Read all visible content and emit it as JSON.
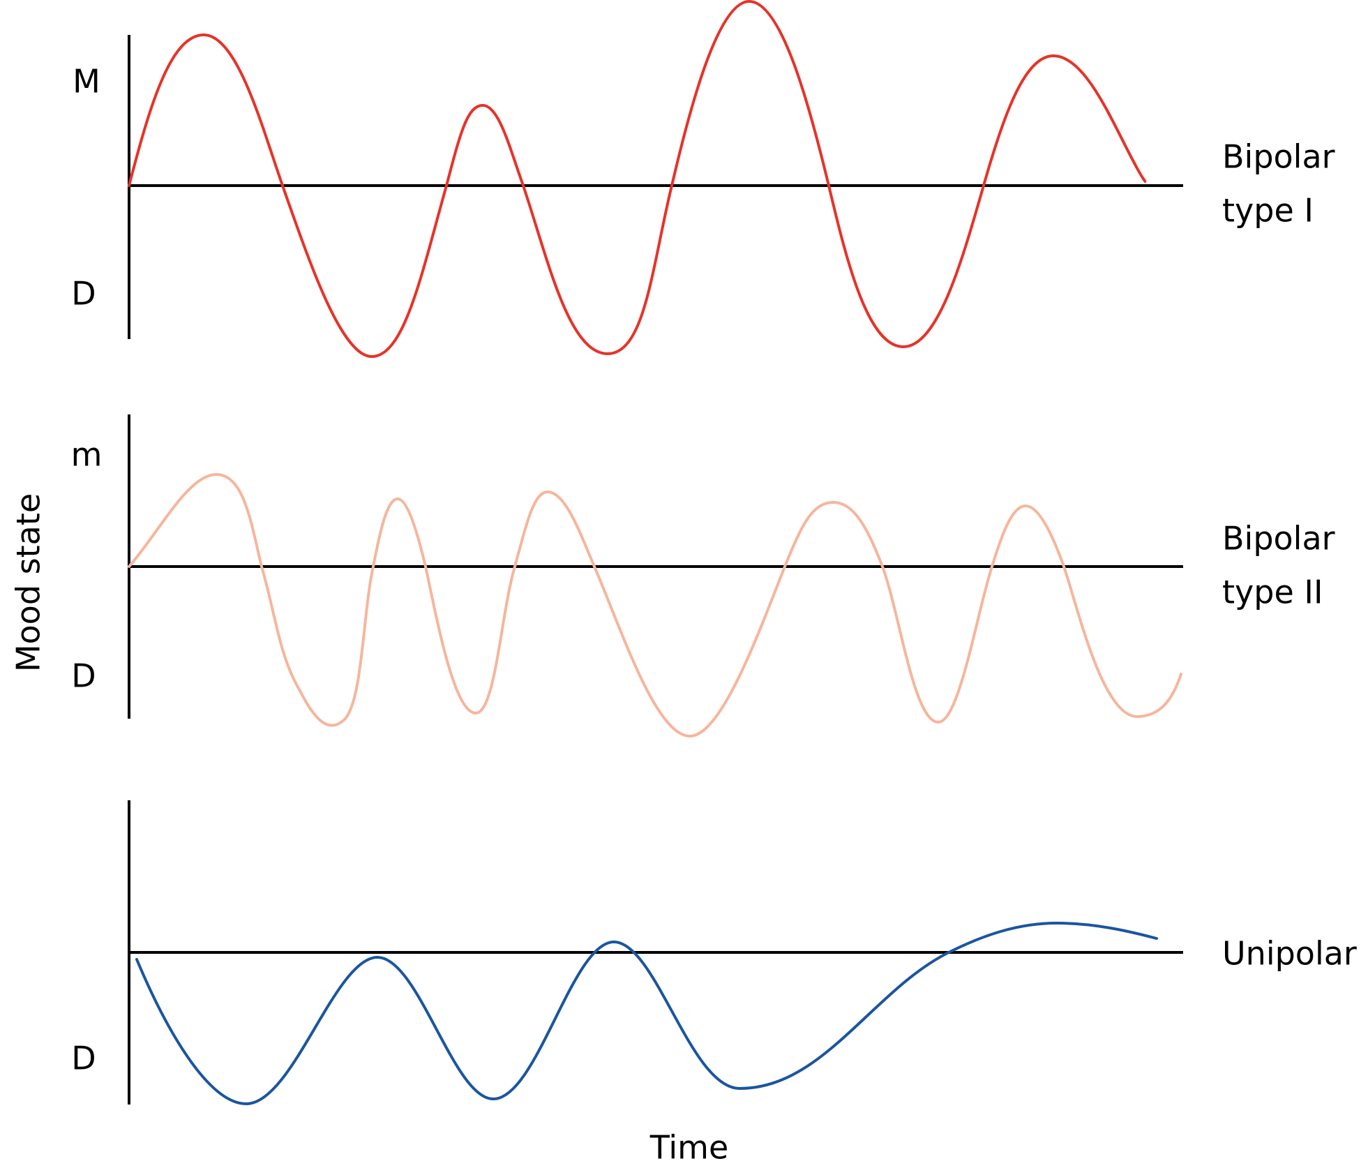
{
  "axis_titles": {
    "y": "Mood state",
    "x": "Time"
  },
  "panels": [
    {
      "id": "bipolar-1",
      "label_lines": [
        "Bipolar",
        "type I"
      ],
      "upper_pole": "M",
      "lower_pole": "D",
      "color": "#e63329"
    },
    {
      "id": "bipolar-2",
      "label_lines": [
        "Bipolar",
        "type II"
      ],
      "upper_pole": "m",
      "lower_pole": "D",
      "color": "#f5b69c"
    },
    {
      "id": "unipolar",
      "label_lines": [
        "Unipolar"
      ],
      "upper_pole": "",
      "lower_pole": "D",
      "color": "#1a55a0"
    }
  ]
}
